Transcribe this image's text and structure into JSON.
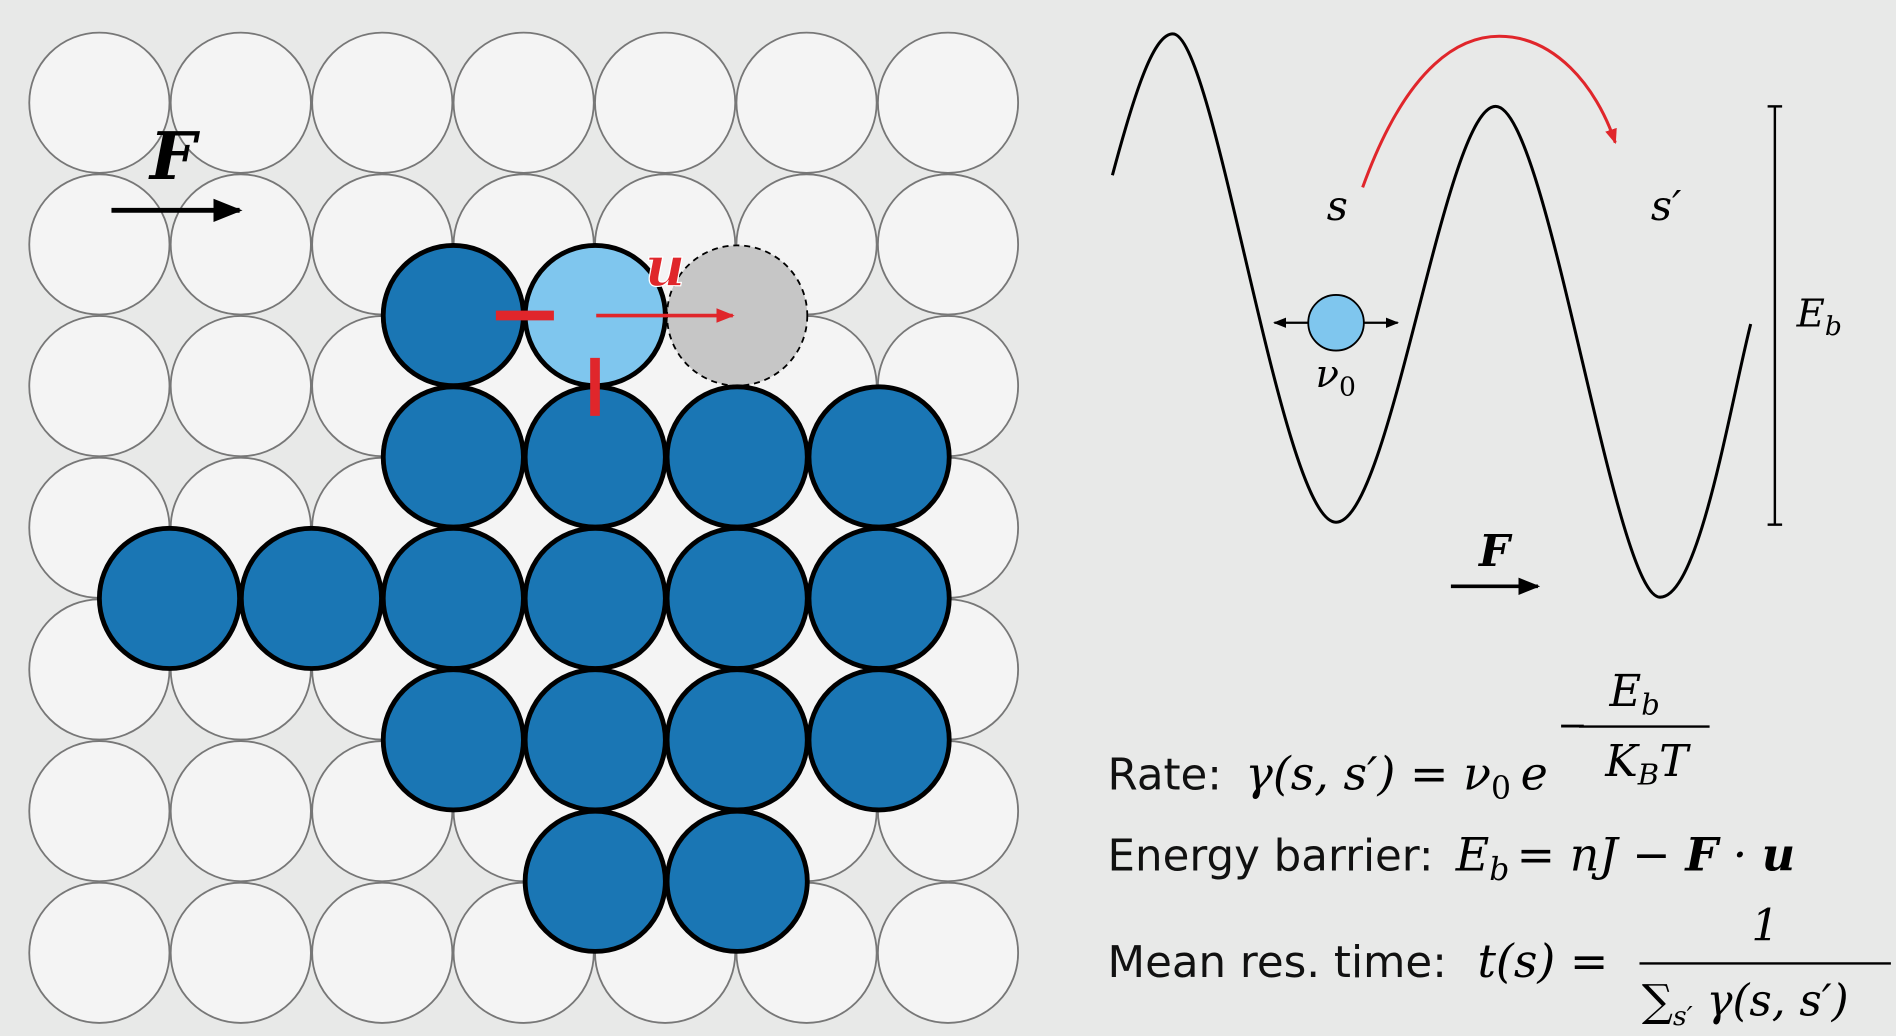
{
  "lattice": {
    "force_label": "F",
    "displacement_label": "u"
  },
  "energy_landscape": {
    "state_from": "s",
    "state_to": "s′",
    "attempt_frequency": {
      "symbol": "ν",
      "subscript": "0"
    },
    "barrier": {
      "symbol": "E",
      "subscript": "b"
    },
    "force_label": "F"
  },
  "formulas": {
    "rate": {
      "label": "Rate:",
      "lhs": "γ(s, s′) = ν",
      "lhs_subscript": "0",
      "base": "e",
      "exponent_sign": "−",
      "exponent_numerator": {
        "symbol": "E",
        "subscript": "b"
      },
      "exponent_denominator": {
        "symbol": "K",
        "subscript": "B",
        "rest": "T"
      }
    },
    "energy_barrier": {
      "label": "Energy barrier:",
      "symbol": "E",
      "subscript": "b",
      "rhs": "= nJ − ",
      "force": "F",
      "dot": " · ",
      "displacement": "u"
    },
    "mean_residence_time": {
      "label": "Mean res. time:",
      "lhs": "t(s) =",
      "numerator": "1",
      "sum": "∑",
      "sum_subscript": "s′",
      "sum_rest": " γ(s, s′)"
    }
  }
}
